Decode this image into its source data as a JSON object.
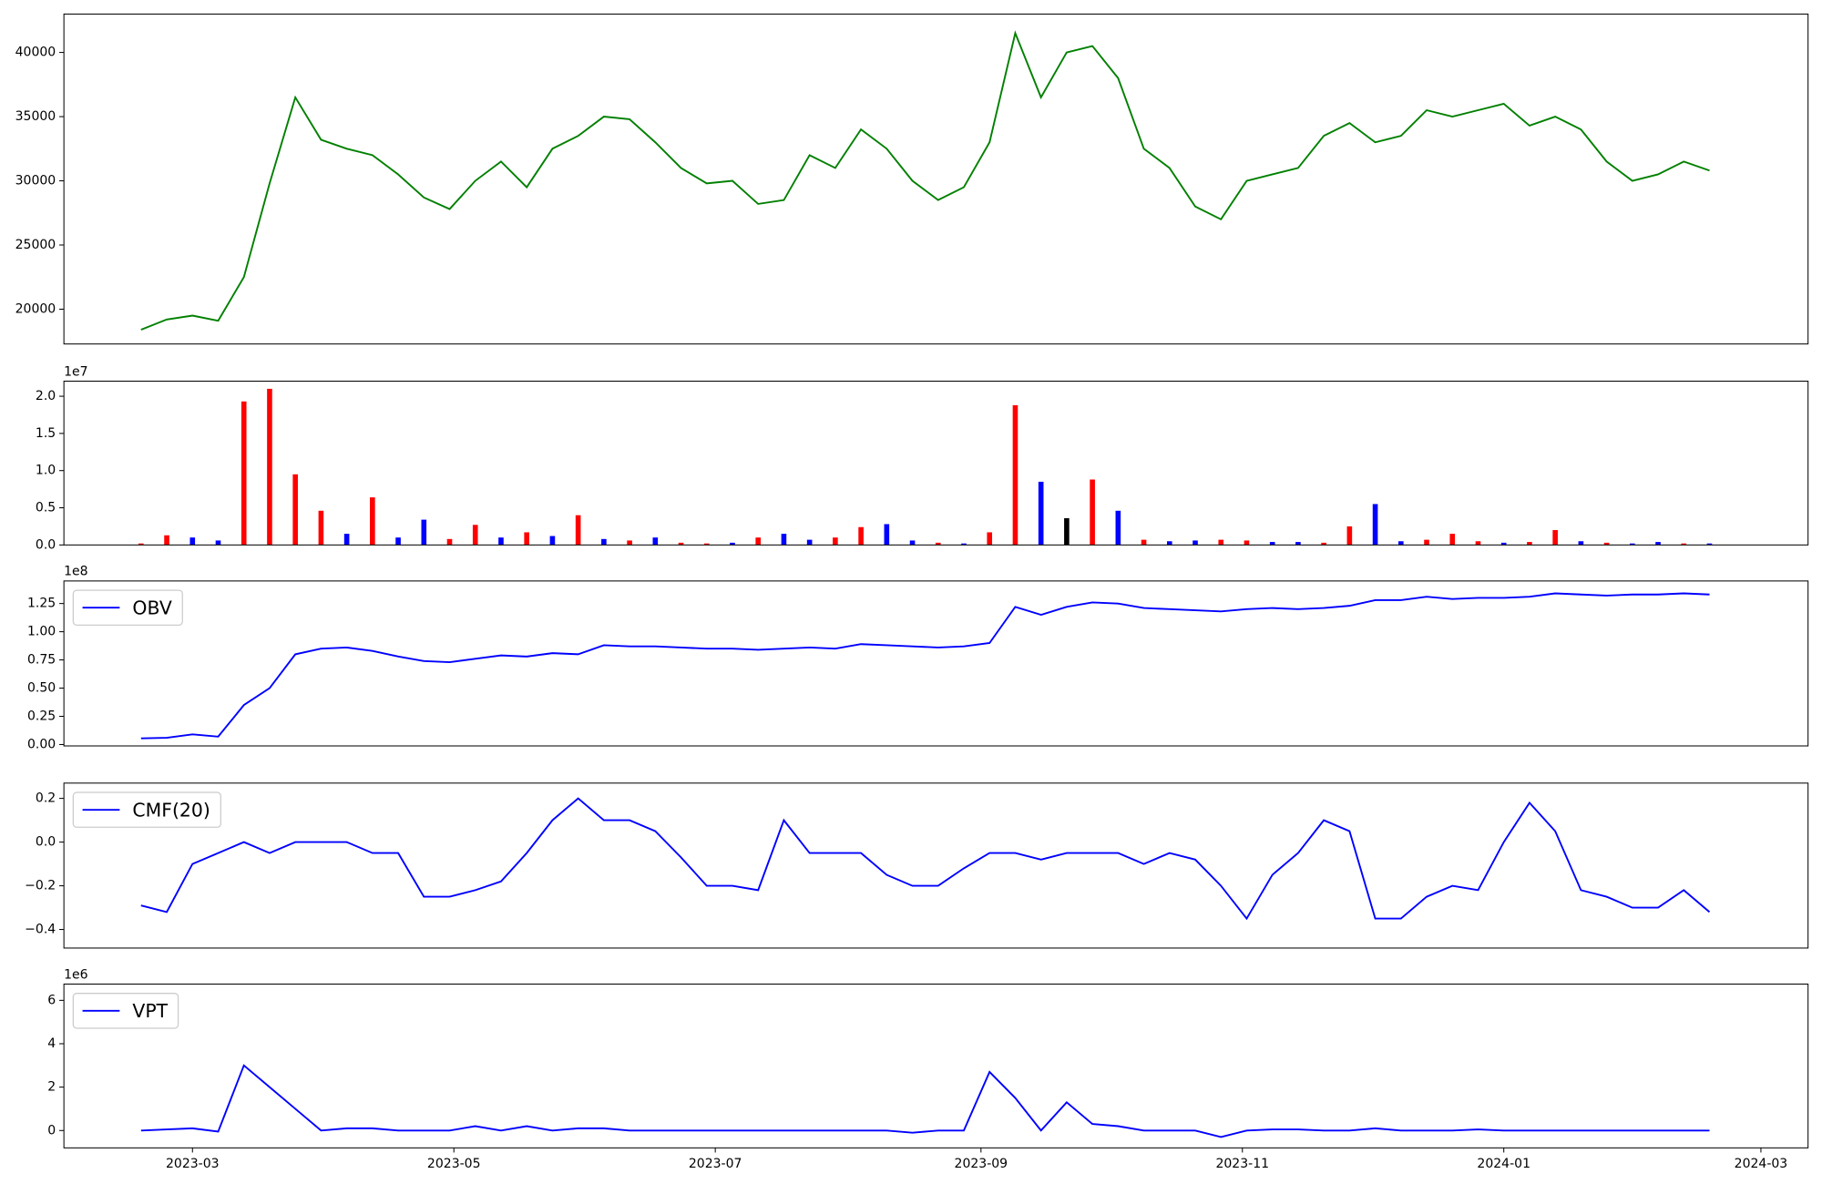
{
  "chart_data": [
    {
      "type": "line",
      "xlim": [
        19387,
        19794
      ],
      "ylim": [
        17290,
        42990
      ],
      "yticks": [
        20000,
        25000,
        30000,
        35000,
        40000
      ],
      "x": [
        19405,
        19411,
        19417,
        19423,
        19429,
        19435,
        19441,
        19447,
        19453,
        19459,
        19465,
        19471,
        19477,
        19483,
        19489,
        19495,
        19501,
        19507,
        19513,
        19519,
        19525,
        19531,
        19537,
        19543,
        19549,
        19555,
        19561,
        19567,
        19573,
        19579,
        19585,
        19591,
        19597,
        19603,
        19609,
        19615,
        19621,
        19627,
        19633,
        19639,
        19645,
        19651,
        19657,
        19663,
        19669,
        19675,
        19681,
        19687,
        19693,
        19699,
        19705,
        19711,
        19717,
        19723,
        19729,
        19735,
        19741,
        19747,
        19753,
        19759,
        19765,
        19771
      ],
      "series": [
        {
          "color": "#008000",
          "values": [
            18400,
            19200,
            19500,
            19100,
            22500,
            29800,
            36500,
            33200,
            32500,
            32000,
            30500,
            28700,
            27800,
            30000,
            31500,
            29500,
            32500,
            33500,
            35000,
            34800,
            33000,
            31000,
            29800,
            30000,
            28200,
            28500,
            32000,
            31000,
            34000,
            32500,
            30000,
            28500,
            29500,
            33000,
            41500,
            36500,
            40000,
            40500,
            38000,
            32500,
            31000,
            28000,
            27000,
            30000,
            30500,
            31000,
            33500,
            34500,
            33000,
            33500,
            35500,
            35000,
            35500,
            36000,
            34300,
            35000,
            34000,
            31500,
            30000,
            30500,
            31500,
            30800
          ]
        }
      ]
    },
    {
      "type": "bar",
      "xlim": [
        19387,
        19794
      ],
      "ylim": [
        0,
        22030000
      ],
      "y_offset_label": "1e7",
      "yticks": [
        {
          "value": 0,
          "label": "0.0"
        },
        {
          "value": 5000000,
          "label": "0.5"
        },
        {
          "value": 10000000,
          "label": "1.0"
        },
        {
          "value": 15000000,
          "label": "1.5"
        },
        {
          "value": 20000000,
          "label": "2.0"
        }
      ],
      "x": [
        19405,
        19411,
        19417,
        19423,
        19429,
        19435,
        19441,
        19447,
        19453,
        19459,
        19465,
        19471,
        19477,
        19483,
        19489,
        19495,
        19501,
        19507,
        19513,
        19519,
        19525,
        19531,
        19537,
        19543,
        19549,
        19555,
        19561,
        19567,
        19573,
        19579,
        19585,
        19591,
        19597,
        19603,
        19609,
        19615,
        19621,
        19627,
        19633,
        19639,
        19645,
        19651,
        19657,
        19663,
        19669,
        19675,
        19681,
        19687,
        19693,
        19699,
        19705,
        19711,
        19717,
        19723,
        19729,
        19735,
        19741,
        19747,
        19753,
        19759,
        19765,
        19771
      ],
      "values": [
        200000,
        1300000,
        1000000,
        600000,
        19300000,
        21000000,
        9500000,
        4600000,
        1500000,
        6400000,
        1000000,
        3400000,
        800000,
        2700000,
        1000000,
        1700000,
        1200000,
        4000000,
        800000,
        600000,
        1000000,
        300000,
        200000,
        300000,
        1000000,
        1500000,
        700000,
        1000000,
        2400000,
        2800000,
        600000,
        300000,
        200000,
        1700000,
        18800000,
        8500000,
        3600000,
        8800000,
        4600000,
        700000,
        500000,
        600000,
        700000,
        600000,
        400000,
        400000,
        300000,
        2500000,
        5500000,
        500000,
        700000,
        1500000,
        500000,
        300000,
        400000,
        2000000,
        500000,
        300000,
        200000,
        400000,
        200000,
        200000
      ],
      "colors": [
        "red",
        "red",
        "blue",
        "blue",
        "red",
        "red",
        "red",
        "red",
        "blue",
        "red",
        "blue",
        "blue",
        "red",
        "red",
        "blue",
        "red",
        "blue",
        "red",
        "blue",
        "red",
        "blue",
        "red",
        "red",
        "blue",
        "red",
        "blue",
        "blue",
        "red",
        "red",
        "blue",
        "blue",
        "red",
        "blue",
        "red",
        "red",
        "blue",
        "black",
        "red",
        "blue",
        "red",
        "blue",
        "blue",
        "red",
        "red",
        "blue",
        "blue",
        "red",
        "red",
        "blue",
        "blue",
        "red",
        "red",
        "red",
        "blue",
        "red",
        "red",
        "blue",
        "red",
        "blue",
        "blue",
        "red",
        "blue"
      ]
    },
    {
      "type": "line",
      "xlim": [
        19387,
        19794
      ],
      "ylim": [
        -1250000,
        145000000
      ],
      "y_offset_label": "1e8",
      "legend": "upper left",
      "yticks": [
        {
          "value": 0,
          "label": "0.00"
        },
        {
          "value": 25000000,
          "label": "0.25"
        },
        {
          "value": 50000000,
          "label": "0.50"
        },
        {
          "value": 75000000,
          "label": "0.75"
        },
        {
          "value": 100000000,
          "label": "1.00"
        },
        {
          "value": 125000000,
          "label": "1.25"
        }
      ],
      "x": [
        19405,
        19411,
        19417,
        19423,
        19429,
        19435,
        19441,
        19447,
        19453,
        19459,
        19465,
        19471,
        19477,
        19483,
        19489,
        19495,
        19501,
        19507,
        19513,
        19519,
        19525,
        19531,
        19537,
        19543,
        19549,
        19555,
        19561,
        19567,
        19573,
        19579,
        19585,
        19591,
        19597,
        19603,
        19609,
        19615,
        19621,
        19627,
        19633,
        19639,
        19645,
        19651,
        19657,
        19663,
        19669,
        19675,
        19681,
        19687,
        19693,
        19699,
        19705,
        19711,
        19717,
        19723,
        19729,
        19735,
        19741,
        19747,
        19753,
        19759,
        19765,
        19771
      ],
      "series": [
        {
          "name": "OBV",
          "color": "#0000ff",
          "values": [
            5500000,
            6000000,
            9000000,
            7000000,
            35000000,
            50000000,
            80000000,
            85000000,
            86000000,
            83000000,
            78000000,
            74000000,
            73000000,
            76000000,
            79000000,
            78000000,
            81000000,
            80000000,
            88000000,
            87000000,
            87000000,
            86000000,
            85000000,
            85000000,
            84000000,
            85000000,
            86000000,
            85000000,
            89000000,
            88000000,
            87000000,
            86000000,
            87000000,
            90000000,
            122000000,
            115000000,
            122000000,
            126000000,
            125000000,
            121000000,
            120000000,
            119000000,
            118000000,
            120000000,
            121000000,
            120000000,
            121000000,
            123000000,
            128000000,
            128000000,
            131000000,
            129000000,
            130000000,
            130000000,
            131000000,
            134000000,
            133000000,
            132000000,
            133000000,
            133000000,
            134000000,
            133000000
          ]
        }
      ]
    },
    {
      "type": "line",
      "xlim": [
        19387,
        19794
      ],
      "ylim": [
        -0.485,
        0.27
      ],
      "legend": "upper left",
      "yticks": [
        {
          "value": -0.4,
          "label": "−0.4"
        },
        {
          "value": -0.2,
          "label": "−0.2"
        },
        {
          "value": 0,
          "label": "0.0"
        },
        0.2
      ],
      "x": [
        19405,
        19411,
        19417,
        19423,
        19429,
        19435,
        19441,
        19447,
        19453,
        19459,
        19465,
        19471,
        19477,
        19483,
        19489,
        19495,
        19501,
        19507,
        19513,
        19519,
        19525,
        19531,
        19537,
        19543,
        19549,
        19555,
        19561,
        19567,
        19573,
        19579,
        19585,
        19591,
        19597,
        19603,
        19609,
        19615,
        19621,
        19627,
        19633,
        19639,
        19645,
        19651,
        19657,
        19663,
        19669,
        19675,
        19681,
        19687,
        19693,
        19699,
        19705,
        19711,
        19717,
        19723,
        19729,
        19735,
        19741,
        19747,
        19753,
        19759,
        19765,
        19771
      ],
      "series": [
        {
          "name": "CMF(20)",
          "color": "#0000ff",
          "values": [
            -0.29,
            -0.32,
            -0.1,
            -0.05,
            0,
            -0.05,
            0,
            0,
            0,
            -0.05,
            -0.05,
            -0.25,
            -0.25,
            -0.22,
            -0.18,
            -0.05,
            0.1,
            0.2,
            0.1,
            0.1,
            0.05,
            -0.07,
            -0.2,
            -0.2,
            -0.22,
            0.1,
            -0.05,
            -0.05,
            -0.05,
            -0.15,
            -0.2,
            -0.2,
            -0.12,
            -0.05,
            -0.05,
            -0.08,
            -0.05,
            -0.05,
            -0.05,
            -0.1,
            -0.05,
            -0.08,
            -0.2,
            -0.35,
            -0.15,
            -0.05,
            0.1,
            0.05,
            -0.35,
            -0.35,
            -0.25,
            -0.2,
            -0.22,
            0,
            0.18,
            0.05,
            -0.22,
            -0.25,
            -0.3,
            -0.3,
            -0.22,
            -0.32
          ]
        }
      ]
    },
    {
      "type": "line",
      "xlim": [
        19387,
        19794
      ],
      "ylim": [
        -800000,
        6750000
      ],
      "y_offset_label": "1e6",
      "legend": "upper left",
      "yticks": [
        {
          "value": 0,
          "label": "0"
        },
        {
          "value": 2000000,
          "label": "2"
        },
        {
          "value": 4000000,
          "label": "4"
        },
        {
          "value": 6000000,
          "label": "6"
        }
      ],
      "xticks": [
        {
          "value": 19417,
          "label": "2023-03"
        },
        {
          "value": 19478,
          "label": "2023-05"
        },
        {
          "value": 19539,
          "label": "2023-07"
        },
        {
          "value": 19601,
          "label": "2023-09"
        },
        {
          "value": 19662,
          "label": "2023-11"
        },
        {
          "value": 19723,
          "label": "2024-01"
        },
        {
          "value": 19783,
          "label": "2024-03"
        }
      ],
      "x": [
        19405,
        19411,
        19417,
        19423,
        19429,
        19435,
        19441,
        19447,
        19453,
        19459,
        19465,
        19471,
        19477,
        19483,
        19489,
        19495,
        19501,
        19507,
        19513,
        19519,
        19525,
        19531,
        19537,
        19543,
        19549,
        19555,
        19561,
        19567,
        19573,
        19579,
        19585,
        19591,
        19597,
        19603,
        19609,
        19615,
        19621,
        19627,
        19633,
        19639,
        19645,
        19651,
        19657,
        19663,
        19669,
        19675,
        19681,
        19687,
        19693,
        19699,
        19705,
        19711,
        19717,
        19723,
        19729,
        19735,
        19741,
        19747,
        19753,
        19759,
        19765,
        19771
      ],
      "series": [
        {
          "name": "VPT",
          "color": "#0000ff",
          "values": [
            0,
            50000,
            100000,
            -50000,
            3000000,
            2000000,
            1000000,
            0,
            100000,
            100000,
            0,
            0,
            0,
            200000,
            0,
            200000,
            0,
            100000,
            100000,
            0,
            0,
            0,
            0,
            0,
            0,
            0,
            0,
            0,
            0,
            0,
            -100000,
            0,
            0,
            2700000,
            1500000,
            0,
            1300000,
            300000,
            200000,
            0,
            0,
            0,
            -300000,
            0,
            50000,
            50000,
            0,
            0,
            100000,
            0,
            0,
            0,
            50000,
            0,
            0,
            0,
            0,
            0,
            0,
            0,
            0,
            0
          ]
        }
      ]
    }
  ]
}
